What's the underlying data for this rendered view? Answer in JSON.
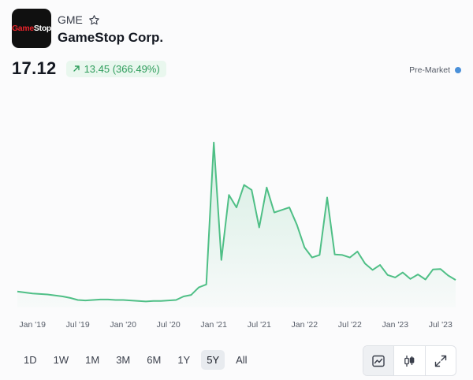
{
  "stock": {
    "logo_text_part1": "Game",
    "logo_text_part2": "Stop",
    "ticker": "GME",
    "company": "GameStop Corp.",
    "price": "17.12",
    "change": "13.45 (366.49%)",
    "session": "Pre-Market",
    "colors": {
      "up": "#2f9d5c",
      "line": "#4fbf86",
      "session_dot": "#4a90d9",
      "logo_red": "#e8232a"
    },
    "icons": {
      "favorite": "star-icon",
      "change": "arrow-up-right-icon"
    }
  },
  "ranges": {
    "items": [
      "1D",
      "1W",
      "1M",
      "3M",
      "6M",
      "1Y",
      "5Y",
      "All"
    ],
    "active": "5Y"
  },
  "tools": {
    "items": [
      "line-chart-icon",
      "candlestick-icon",
      "expand-icon"
    ],
    "active": "line-chart-icon"
  },
  "chart_data": {
    "type": "area",
    "x_tick_labels": [
      "Jan '19",
      "Jul '19",
      "Jan '20",
      "Jul '20",
      "Jan '21",
      "Jul '21",
      "Jan '22",
      "Jul '22",
      "Jan '23",
      "Jul '23"
    ],
    "x_range": [
      "2018-11",
      "2023-09"
    ],
    "y_range": [
      0,
      35
    ],
    "grid": false,
    "series": [
      {
        "x": [
          "2018-11",
          "2018-12",
          "2019-01",
          "2019-02",
          "2019-03",
          "2019-04",
          "2019-05",
          "2019-06",
          "2019-07",
          "2019-08",
          "2019-09",
          "2019-10",
          "2019-11",
          "2019-12",
          "2020-01",
          "2020-02",
          "2020-03",
          "2020-04",
          "2020-05",
          "2020-06",
          "2020-07",
          "2020-08",
          "2020-09",
          "2020-10",
          "2020-11",
          "2020-12",
          "2021-01",
          "2021-02",
          "2021-03",
          "2021-04",
          "2021-05",
          "2021-06",
          "2021-07",
          "2021-08",
          "2021-09",
          "2021-10",
          "2021-11",
          "2021-12",
          "2022-01",
          "2022-02",
          "2022-03",
          "2022-04",
          "2022-05",
          "2022-06",
          "2022-07",
          "2022-08",
          "2022-09",
          "2022-10",
          "2022-11",
          "2022-12",
          "2023-01",
          "2023-02",
          "2023-03",
          "2023-04",
          "2023-05",
          "2023-06",
          "2023-07",
          "2023-08",
          "2023-09"
        ],
        "values": [
          3.2,
          3.0,
          2.8,
          2.7,
          2.6,
          2.4,
          2.2,
          1.9,
          1.5,
          1.4,
          1.5,
          1.6,
          1.6,
          1.5,
          1.5,
          1.4,
          1.3,
          1.2,
          1.3,
          1.3,
          1.4,
          1.5,
          2.2,
          2.5,
          4.0,
          4.6,
          33.0,
          9.5,
          22.5,
          20.0,
          24.5,
          23.5,
          16.0,
          24.0,
          19.0,
          19.5,
          20.0,
          16.5,
          12.0,
          10.0,
          10.5,
          22.0,
          10.6,
          10.5,
          10.0,
          11.2,
          8.8,
          7.5,
          8.5,
          6.5,
          6.0,
          7.0,
          5.7,
          6.6,
          5.6,
          7.6,
          7.7,
          6.4,
          5.5
        ]
      }
    ]
  }
}
